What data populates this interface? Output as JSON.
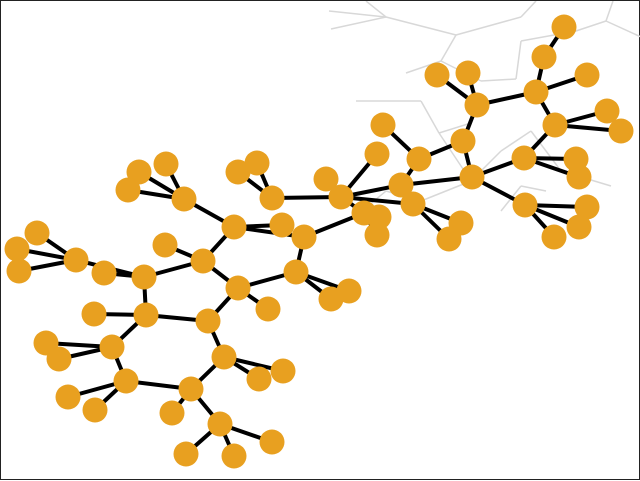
{
  "scene": {
    "atom_color": "#E8A020",
    "bond_color": "#000000",
    "background_color": "#FFFFFF",
    "frame_color": "#222222",
    "ghost_line_color": "#D8D8D8",
    "object": "molecule-graph"
  }
}
